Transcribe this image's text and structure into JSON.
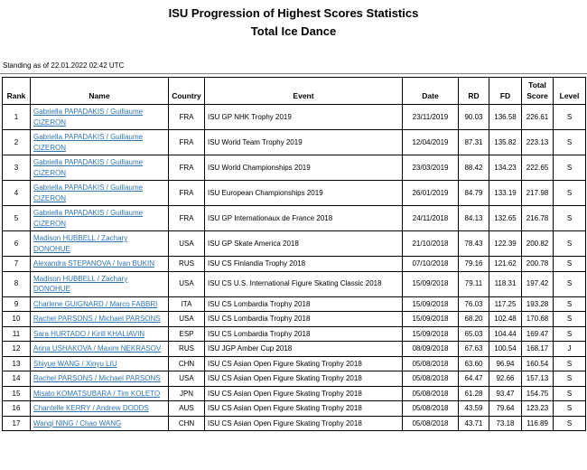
{
  "page": {
    "title": "ISU Progression of Highest Scores Statistics",
    "subtitle": "Total Ice Dance",
    "standing_note": "Standing as of 22.01.2022 02:42 UTC"
  },
  "colors": {
    "link_blue": "#2E75B6",
    "table_border": "#000000",
    "rule_gray": "#808080"
  },
  "table": {
    "columns": [
      {
        "key": "rank",
        "label": "Rank"
      },
      {
        "key": "name",
        "label": "Name"
      },
      {
        "key": "country",
        "label": "Country"
      },
      {
        "key": "event",
        "label": "Event"
      },
      {
        "key": "date",
        "label": "Date"
      },
      {
        "key": "rd",
        "label": "RD"
      },
      {
        "key": "fd",
        "label": "FD"
      },
      {
        "key": "total",
        "label": "Total Score"
      },
      {
        "key": "level",
        "label": "Level"
      }
    ],
    "rows": [
      {
        "rank": "1",
        "name": "Gabriella PAPADAKIS / Guillaume CIZERON",
        "country": "FRA",
        "event": "ISU GP NHK Trophy 2019",
        "date": "23/11/2019",
        "rd": "90.03",
        "fd": "136.58",
        "total": "226.61",
        "level": "S"
      },
      {
        "rank": "2",
        "name": "Gabriella PAPADAKIS / Guillaume CIZERON",
        "country": "FRA",
        "event": "ISU World Team Trophy 2019",
        "date": "12/04/2019",
        "rd": "87.31",
        "fd": "135.82",
        "total": "223.13",
        "level": "S"
      },
      {
        "rank": "3",
        "name": "Gabriella PAPADAKIS / Guillaume CIZERON",
        "country": "FRA",
        "event": "ISU World Championships 2019",
        "date": "23/03/2019",
        "rd": "88.42",
        "fd": "134.23",
        "total": "222.65",
        "level": "S"
      },
      {
        "rank": "4",
        "name": "Gabriella PAPADAKIS / Guillaume CIZERON",
        "country": "FRA",
        "event": "ISU European Championships 2019",
        "date": "26/01/2019",
        "rd": "84.79",
        "fd": "133.19",
        "total": "217.98",
        "level": "S"
      },
      {
        "rank": "5",
        "name": "Gabriella PAPADAKIS / Guillaume CIZERON",
        "country": "FRA",
        "event": "ISU GP Internationaux de France 2018",
        "date": "24/11/2018",
        "rd": "84.13",
        "fd": "132.65",
        "total": "216.78",
        "level": "S"
      },
      {
        "rank": "6",
        "name": "Madison HUBBELL / Zachary DONOHUE",
        "country": "USA",
        "event": "ISU GP Skate America 2018",
        "date": "21/10/2018",
        "rd": "78.43",
        "fd": "122.39",
        "total": "200.82",
        "level": "S"
      },
      {
        "rank": "7",
        "name": "Alexandra STEPANOVA / Ivan BUKIN",
        "country": "RUS",
        "event": "ISU CS Finlandia Trophy 2018",
        "date": "07/10/2018",
        "rd": "79.16",
        "fd": "121.62",
        "total": "200.78",
        "level": "S"
      },
      {
        "rank": "8",
        "name": "Madison HUBBELL / Zachary DONOHUE",
        "country": "USA",
        "event": "ISU CS U.S. International Figure Skating Classic 2018",
        "date": "15/09/2018",
        "rd": "79.11",
        "fd": "118.31",
        "total": "197.42",
        "level": "S"
      },
      {
        "rank": "9",
        "name": "Charlene GUIGNARD / Marco FABBRI",
        "country": "ITA",
        "event": "ISU CS Lombardia Trophy 2018",
        "date": "15/09/2018",
        "rd": "76.03",
        "fd": "117.25",
        "total": "193.28",
        "level": "S"
      },
      {
        "rank": "10",
        "name": "Rachel PARSONS / Michael PARSONS",
        "country": "USA",
        "event": "ISU CS Lombardia Trophy 2018",
        "date": "15/09/2018",
        "rd": "68.20",
        "fd": "102.48",
        "total": "170.68",
        "level": "S"
      },
      {
        "rank": "11",
        "name": "Sara HURTADO / Kirill KHALIAVIN",
        "country": "ESP",
        "event": "ISU CS Lombardia Trophy 2018",
        "date": "15/09/2018",
        "rd": "65.03",
        "fd": "104.44",
        "total": "169.47",
        "level": "S"
      },
      {
        "rank": "12",
        "name": "Arina USHAKOVA / Maxim NEKRASOV",
        "country": "RUS",
        "event": "ISU JGP Amber Cup 2018",
        "date": "08/09/2018",
        "rd": "67.63",
        "fd": "100.54",
        "total": "168.17",
        "level": "J"
      },
      {
        "rank": "13",
        "name": "Shiyue WANG / Xinyu LIU",
        "country": "CHN",
        "event": "ISU CS Asian Open Figure Skating Trophy 2018",
        "date": "05/08/2018",
        "rd": "63.60",
        "fd": "96.94",
        "total": "160.54",
        "level": "S"
      },
      {
        "rank": "14",
        "name": "Rachel PARSONS / Michael PARSONS",
        "country": "USA",
        "event": "ISU CS Asian Open Figure Skating Trophy 2018",
        "date": "05/08/2018",
        "rd": "64.47",
        "fd": "92.66",
        "total": "157.13",
        "level": "S"
      },
      {
        "rank": "15",
        "name": "Misato KOMATSUBARA / Tim KOLETO",
        "country": "JPN",
        "event": "ISU CS Asian Open Figure Skating Trophy 2018",
        "date": "05/08/2018",
        "rd": "61.28",
        "fd": "93.47",
        "total": "154.75",
        "level": "S"
      },
      {
        "rank": "16",
        "name": "Chantelle KERRY / Andrew DODDS",
        "country": "AUS",
        "event": "ISU CS Asian Open Figure Skating Trophy 2018",
        "date": "05/08/2018",
        "rd": "43.59",
        "fd": "79.64",
        "total": "123.23",
        "level": "S"
      },
      {
        "rank": "17",
        "name": "Wanqi NING / Chao WANG",
        "country": "CHN",
        "event": "ISU CS Asian Open Figure Skating Trophy 2018",
        "date": "05/08/2018",
        "rd": "43.71",
        "fd": "73.18",
        "total": "116.89",
        "level": "S"
      }
    ]
  }
}
